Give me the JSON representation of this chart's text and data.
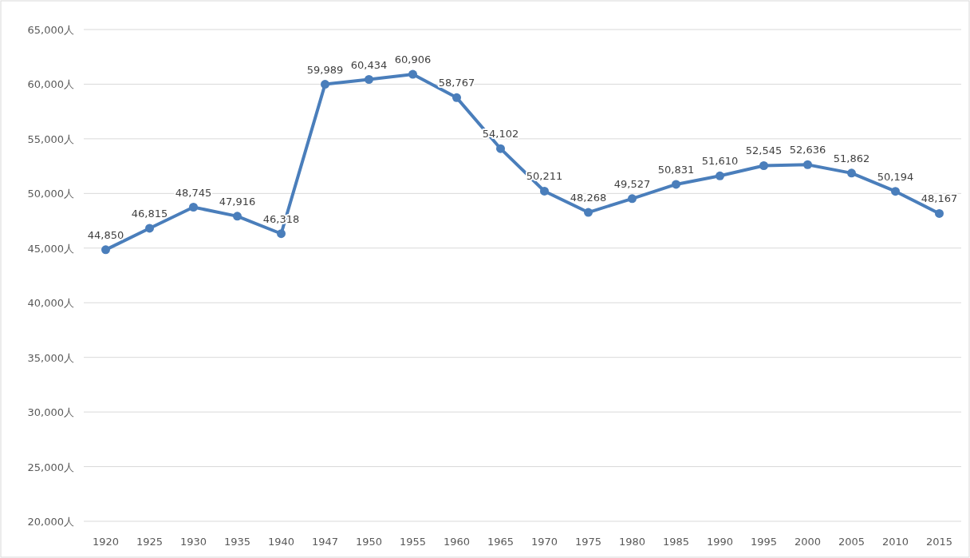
{
  "chart_data": {
    "type": "line",
    "categories": [
      "1920",
      "1925",
      "1930",
      "1935",
      "1940",
      "1947",
      "1950",
      "1955",
      "1960",
      "1965",
      "1970",
      "1975",
      "1980",
      "1985",
      "1990",
      "1995",
      "2000",
      "2005",
      "2010",
      "2015"
    ],
    "values": [
      44850,
      46815,
      48745,
      47916,
      46318,
      59989,
      60434,
      60906,
      58767,
      54102,
      50211,
      48268,
      49527,
      50831,
      51610,
      52545,
      52636,
      51862,
      50194,
      48167
    ],
    "value_labels": [
      "44,850",
      "46,815",
      "48,745",
      "47,916",
      "46,318",
      "59,989",
      "60,434",
      "60,906",
      "58,767",
      "54,102",
      "50,211",
      "48,268",
      "49,527",
      "50,831",
      "51,610",
      "52,545",
      "52,636",
      "51,862",
      "50,194",
      "48,167"
    ],
    "color": "#4a7ebb",
    "marker": "circle",
    "line_style": "solid",
    "grid": "y",
    "ylim": [
      20000,
      65000
    ],
    "yticks": [
      {
        "value": 20000,
        "label": "20,000人"
      },
      {
        "value": 25000,
        "label": "25,000人"
      },
      {
        "value": 30000,
        "label": "30,000人"
      },
      {
        "value": 35000,
        "label": "35,000人"
      },
      {
        "value": 40000,
        "label": "40,000人"
      },
      {
        "value": 45000,
        "label": "45,000人"
      },
      {
        "value": 50000,
        "label": "50,000人"
      },
      {
        "value": 55000,
        "label": "55,000人"
      },
      {
        "value": 60000,
        "label": "60,000人"
      },
      {
        "value": 65000,
        "label": "65,000人"
      }
    ]
  }
}
